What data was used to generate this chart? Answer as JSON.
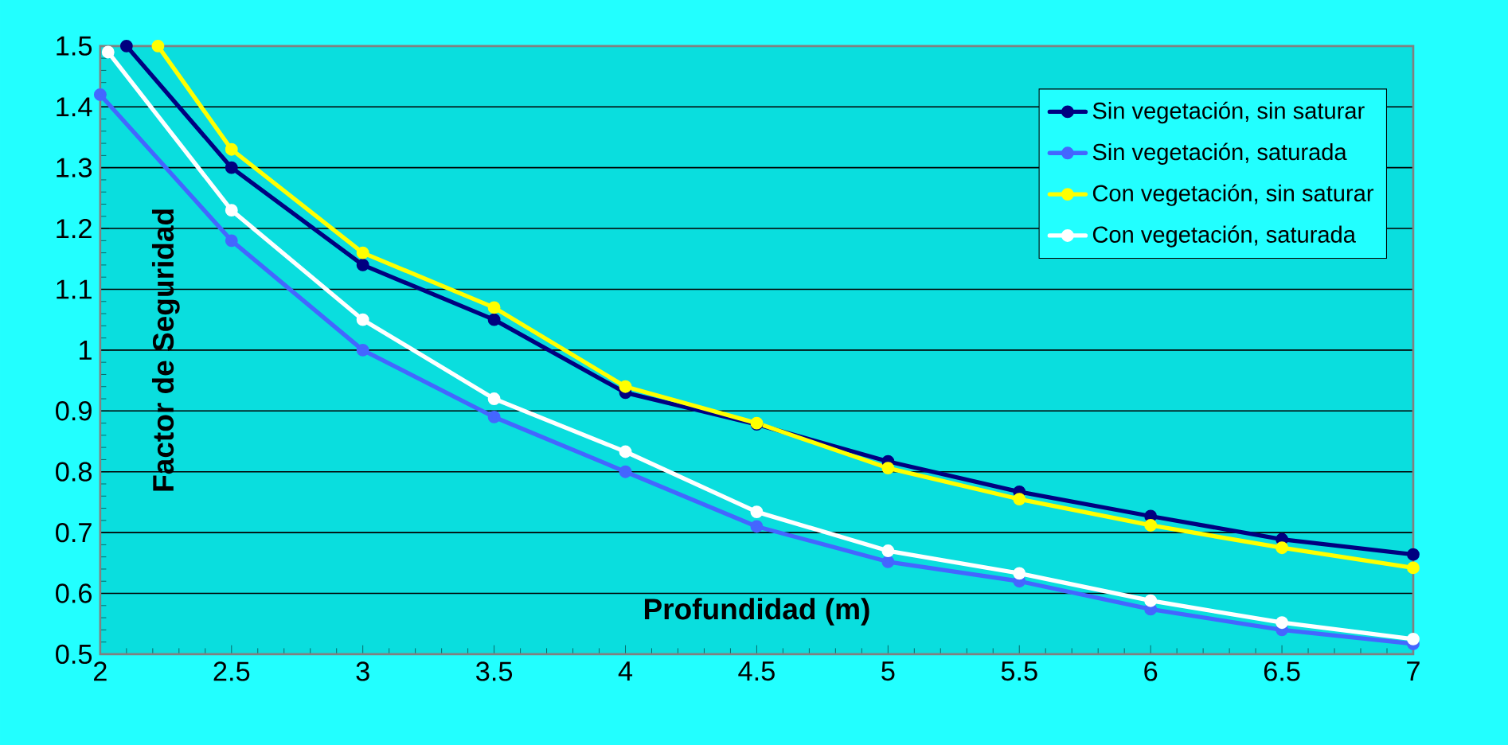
{
  "chart_data": {
    "type": "line",
    "xlabel": "Profundidad (m)",
    "ylabel": "Factor de Seguridad",
    "xlim": [
      2,
      7
    ],
    "ylim": [
      0.5,
      1.5
    ],
    "xticks": [
      2,
      2.5,
      3,
      3.5,
      4,
      4.5,
      5,
      5.5,
      6,
      6.5,
      7
    ],
    "yticks": [
      0.5,
      0.6,
      0.7,
      0.8,
      0.9,
      1,
      1.1,
      1.2,
      1.3,
      1.4,
      1.5
    ],
    "grid": "y",
    "legend": "top right",
    "marker": "circle",
    "series": [
      {
        "name": "Sin vegetación, sin saturar",
        "color": "#000080",
        "x": [
          2.1,
          2.5,
          3,
          3.5,
          4,
          4.5,
          5,
          5.5,
          6,
          6.5,
          7
        ],
        "values": [
          1.5,
          1.3,
          1.14,
          1.05,
          0.93,
          0.878,
          0.817,
          0.767,
          0.727,
          0.689,
          0.664
        ]
      },
      {
        "name": "Sin vegetación, saturada",
        "color": "#4466ff",
        "x": [
          2,
          2.5,
          3,
          3.5,
          4,
          4.5,
          5,
          5.5,
          6,
          6.5,
          7
        ],
        "values": [
          1.42,
          1.18,
          1.0,
          0.89,
          0.8,
          0.71,
          0.652,
          0.62,
          0.574,
          0.54,
          0.517
        ]
      },
      {
        "name": "Con vegetación, sin saturar",
        "color": "#ffff00",
        "x": [
          2.22,
          2.5,
          3,
          3.5,
          4,
          4.5,
          5,
          5.5,
          6,
          6.5,
          7
        ],
        "values": [
          1.5,
          1.33,
          1.16,
          1.07,
          0.94,
          0.88,
          0.806,
          0.755,
          0.712,
          0.675,
          0.642
        ]
      },
      {
        "name": "Con vegetación, saturada",
        "color": "#ffffff",
        "x": [
          2.03,
          2.5,
          3,
          3.5,
          4,
          4.5,
          5,
          5.5,
          6,
          6.5,
          7
        ],
        "values": [
          1.49,
          1.23,
          1.05,
          0.92,
          0.833,
          0.734,
          0.67,
          0.633,
          0.588,
          0.552,
          0.525
        ]
      }
    ]
  }
}
